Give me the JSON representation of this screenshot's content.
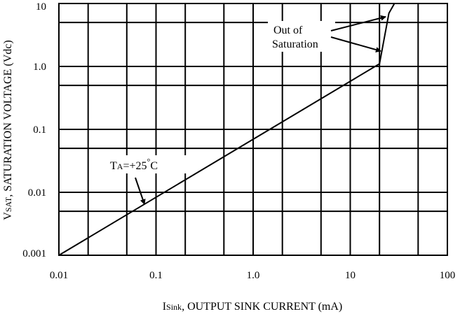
{
  "chart_data": {
    "type": "line",
    "x_scale": "log",
    "y_scale": "log",
    "xlim": [
      0.01,
      100
    ],
    "ylim": [
      0.001,
      10
    ],
    "grid": true,
    "x_ticks": [
      "0.01",
      "0.1",
      "1.0",
      "10",
      "100"
    ],
    "y_ticks": [
      "0.001",
      "0.01",
      "0.1",
      "1.0",
      "10"
    ],
    "xlabel": {
      "main": "I",
      "sub": "Sink",
      "rest": ", OUTPUT SINK CURRENT (mA)"
    },
    "ylabel": {
      "main": "V",
      "sub": "SAT",
      "rest": ", SATURATION VOLTAGE (Vdc)"
    },
    "series": [
      {
        "x": [
          0.01,
          20,
          25,
          28.5
        ],
        "y": [
          0.001,
          1.1,
          7.0,
          10
        ]
      }
    ],
    "annotations": {
      "temp": {
        "main": "T",
        "sub": "A",
        "rest": "=+25",
        "degree": "°",
        "unit": "C"
      },
      "saturation_line1": "Out of",
      "saturation_line2": "Saturation"
    }
  }
}
